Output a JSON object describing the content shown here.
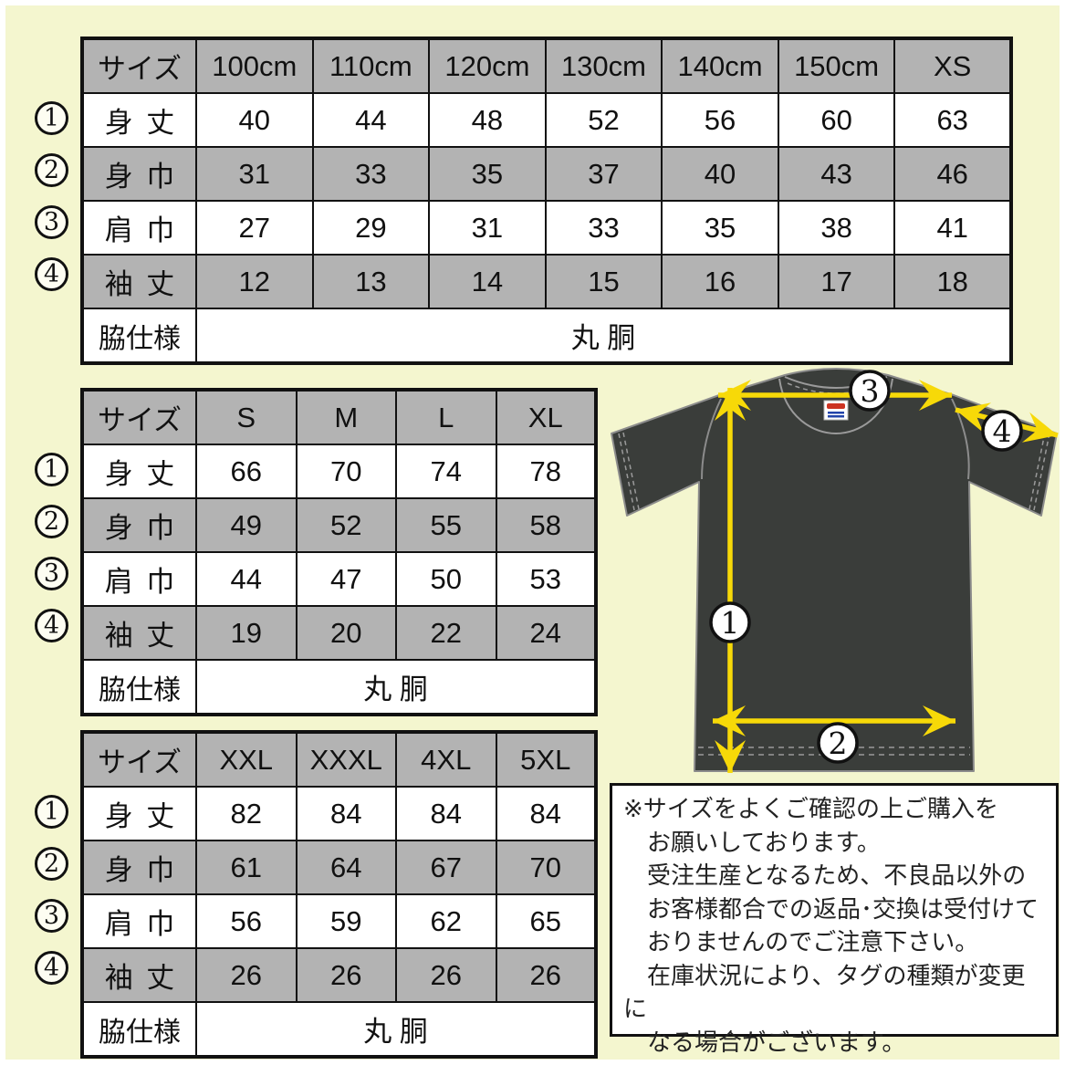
{
  "page": {
    "background": "#f4f6cf",
    "frame": "#ffffff",
    "table_shade": "#b3b3b3",
    "arrow_color": "#f7d908",
    "shirt_color": "#3a3d3a"
  },
  "tables": [
    {
      "name": "kids-sizes",
      "header": [
        "サイズ",
        "100cm",
        "110cm",
        "120cm",
        "130cm",
        "140cm",
        "150cm",
        "XS"
      ],
      "rows": [
        {
          "num": "1",
          "label": "身 丈",
          "values": [
            "40",
            "44",
            "48",
            "52",
            "56",
            "60",
            "63"
          ]
        },
        {
          "num": "2",
          "label": "身 巾",
          "values": [
            "31",
            "33",
            "35",
            "37",
            "40",
            "43",
            "46"
          ]
        },
        {
          "num": "3",
          "label": "肩 巾",
          "values": [
            "27",
            "29",
            "31",
            "33",
            "35",
            "38",
            "41"
          ]
        },
        {
          "num": "4",
          "label": "袖 丈",
          "values": [
            "12",
            "13",
            "14",
            "15",
            "16",
            "17",
            "18"
          ]
        }
      ],
      "footer_label": "脇仕様",
      "footer_value": "丸 胴"
    },
    {
      "name": "adult-sizes",
      "header": [
        "サイズ",
        "S",
        "M",
        "L",
        "XL"
      ],
      "rows": [
        {
          "num": "1",
          "label": "身 丈",
          "values": [
            "66",
            "70",
            "74",
            "78"
          ]
        },
        {
          "num": "2",
          "label": "身 巾",
          "values": [
            "49",
            "52",
            "55",
            "58"
          ]
        },
        {
          "num": "3",
          "label": "肩 巾",
          "values": [
            "44",
            "47",
            "50",
            "53"
          ]
        },
        {
          "num": "4",
          "label": "袖 丈",
          "values": [
            "19",
            "20",
            "22",
            "24"
          ]
        }
      ],
      "footer_label": "脇仕様",
      "footer_value": "丸 胴"
    },
    {
      "name": "plus-sizes",
      "header": [
        "サイズ",
        "XXL",
        "XXXL",
        "4XL",
        "5XL"
      ],
      "rows": [
        {
          "num": "1",
          "label": "身 丈",
          "values": [
            "82",
            "84",
            "84",
            "84"
          ]
        },
        {
          "num": "2",
          "label": "身 巾",
          "values": [
            "61",
            "64",
            "67",
            "70"
          ]
        },
        {
          "num": "3",
          "label": "肩 巾",
          "values": [
            "56",
            "59",
            "62",
            "65"
          ]
        },
        {
          "num": "4",
          "label": "袖 丈",
          "values": [
            "26",
            "26",
            "26",
            "26"
          ]
        }
      ],
      "footer_label": "脇仕様",
      "footer_value": "丸 胴"
    }
  ],
  "diagram": {
    "callouts": [
      "1",
      "2",
      "3",
      "4"
    ]
  },
  "note": {
    "lines": [
      "※サイズをよくご確認の上ご購入を",
      "　お願いしております。",
      "　受注生産となるため、不良品以外の",
      "　お客様都合での返品･交換は受付けて",
      "　おりませんのでご注意下さい。",
      "　在庫状況により、タグの種類が変更に",
      "　なる場合がございます。"
    ]
  }
}
